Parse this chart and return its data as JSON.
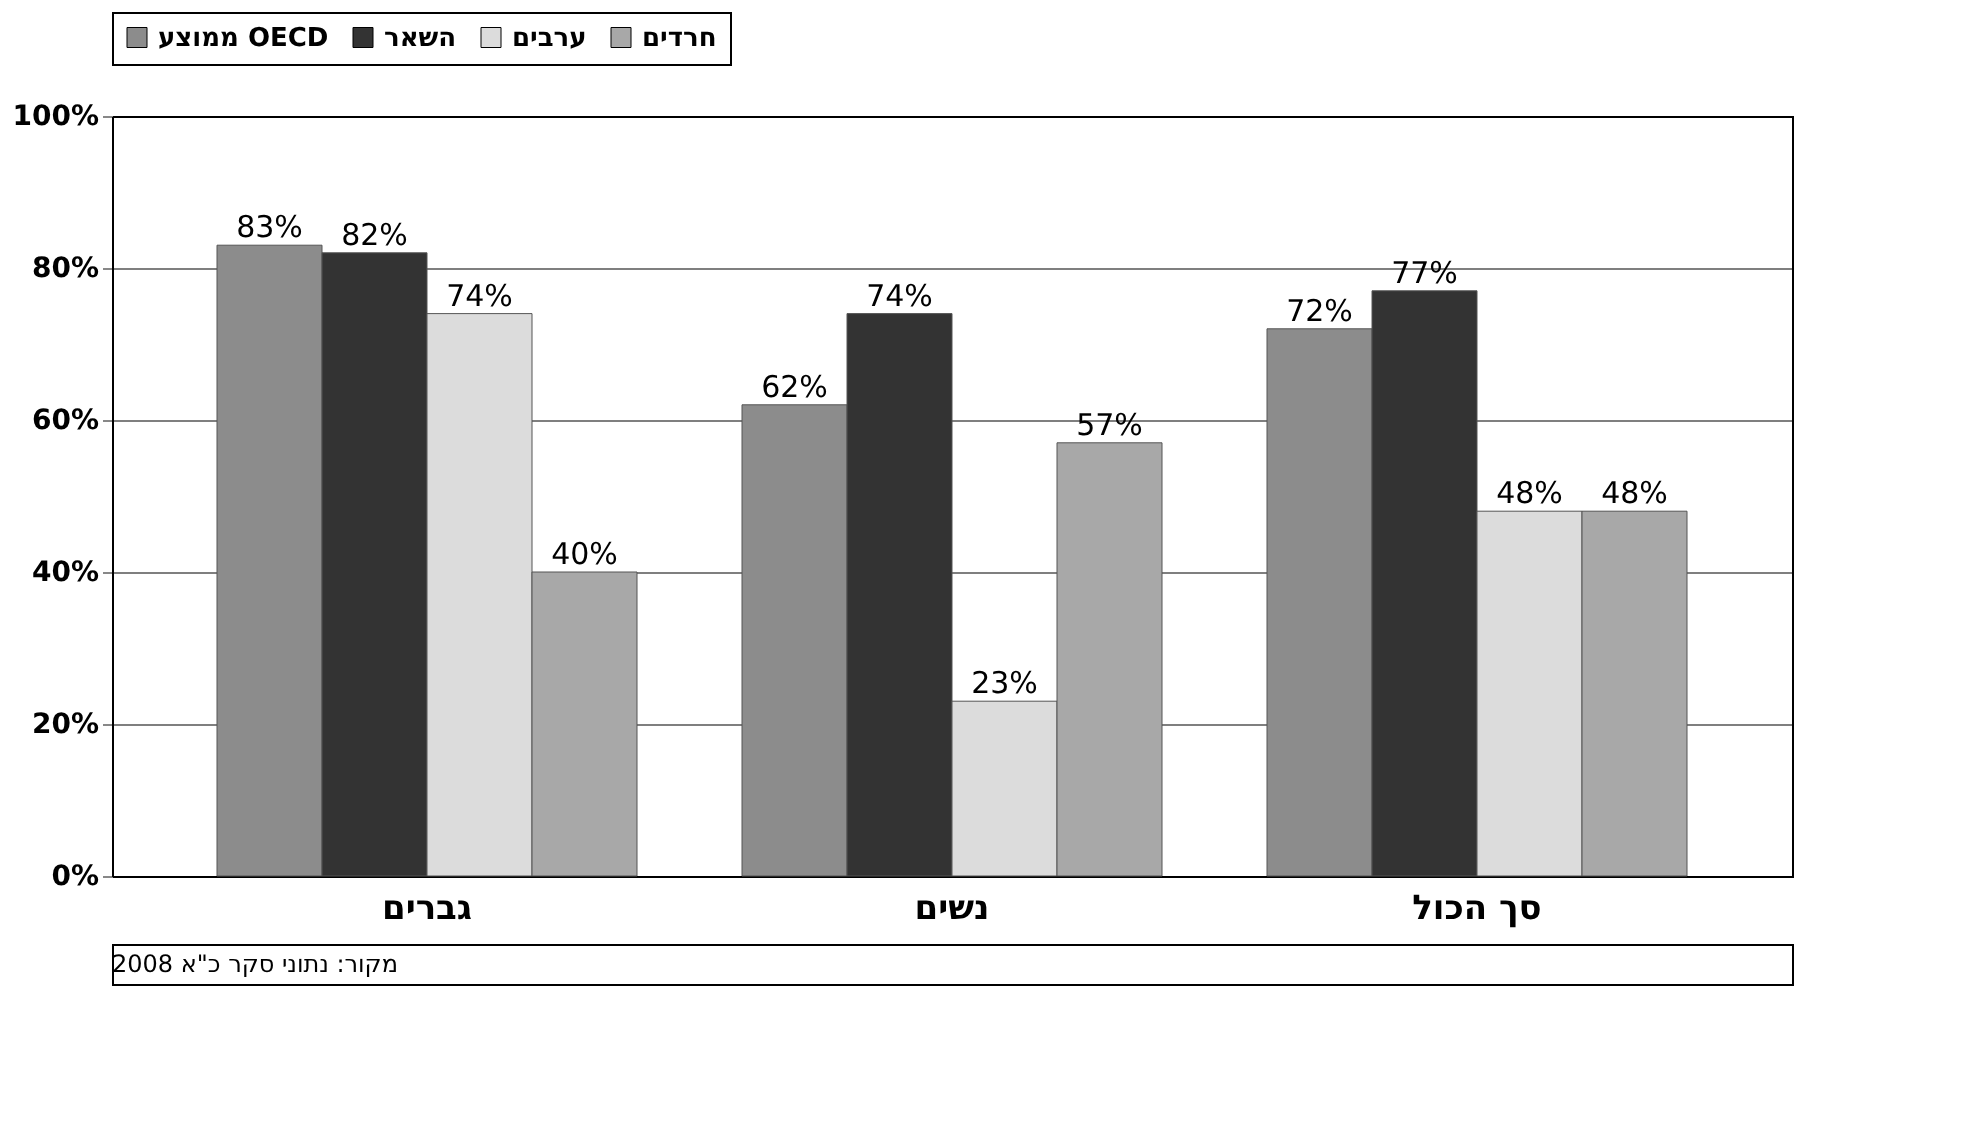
{
  "chart_data": {
    "type": "bar",
    "categories": [
      "גברים",
      "נשים",
      "סך הכול"
    ],
    "series": [
      {
        "name": "ממוצע OECD",
        "color": "#8c8c8c",
        "values": [
          83,
          62,
          72
        ],
        "value_labels": [
          "83%",
          "62%",
          "72%"
        ]
      },
      {
        "name": "השאר",
        "color": "#333333",
        "values": [
          82,
          74,
          77
        ],
        "value_labels": [
          "82%",
          "74%",
          "77%"
        ]
      },
      {
        "name": "ערבים",
        "color": "#dcdcdc",
        "values": [
          74,
          23,
          48
        ],
        "value_labels": [
          "74%",
          "23%",
          "48%"
        ]
      },
      {
        "name": "חרדים",
        "color": "#a8a8a8",
        "values": [
          40,
          57,
          48
        ],
        "value_labels": [
          "40%",
          "57%",
          "48%"
        ]
      }
    ],
    "ylim": [
      0,
      100
    ],
    "yticks": [
      {
        "value": 0,
        "label": "0%"
      },
      {
        "value": 20,
        "label": "20%"
      },
      {
        "value": 40,
        "label": "40%"
      },
      {
        "value": 60,
        "label": "60%"
      },
      {
        "value": 80,
        "label": "80%"
      },
      {
        "value": 100,
        "label": "100%"
      }
    ],
    "grid": "y",
    "legend": "top left",
    "annotations": [
      "מקור: נתוני סקר כ\"א 2008"
    ]
  }
}
